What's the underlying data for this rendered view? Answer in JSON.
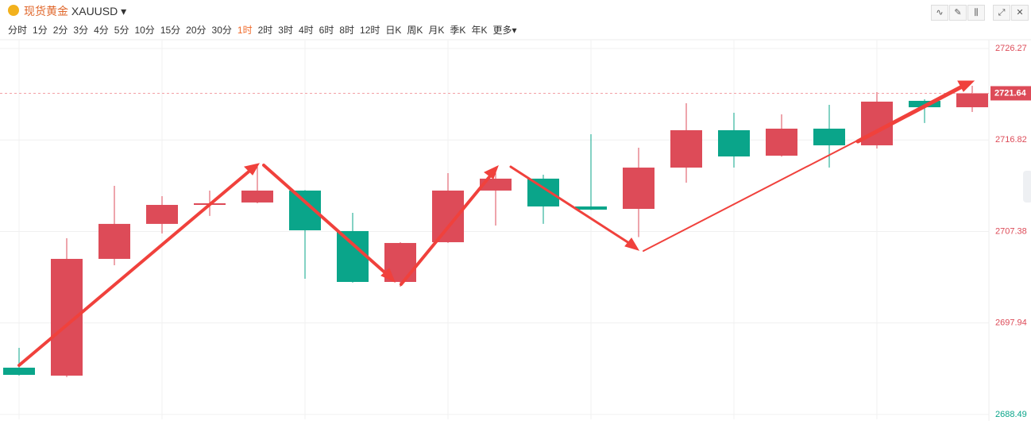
{
  "header": {
    "title": "现货黄金",
    "symbol": "XAUUSD",
    "intervals": [
      "分时",
      "1分",
      "2分",
      "3分",
      "4分",
      "5分",
      "10分",
      "15分",
      "20分",
      "30分",
      "1时",
      "2时",
      "3时",
      "4时",
      "6时",
      "8时",
      "12时",
      "日K",
      "周K",
      "月K",
      "季K",
      "年K",
      "更多"
    ]
  },
  "chart_data": {
    "type": "candlestick",
    "open": [
      2693.32,
      2692.5,
      2704.55,
      2708.16,
      2710.12,
      2710.37,
      2711.6,
      2707.42,
      2702.17,
      2706.27,
      2711.6,
      2712.83,
      2709.96,
      2709.71,
      2713.97,
      2717.83,
      2715.2,
      2717.99,
      2716.27,
      2720.86,
      2720.2
    ],
    "high": [
      2695.37,
      2706.68,
      2712.09,
      2711.02,
      2711.6,
      2714.22,
      2711.65,
      2709.3,
      2706.27,
      2713.4,
      2713.89,
      2713.24,
      2717.42,
      2716.02,
      2720.61,
      2719.63,
      2719.47,
      2720.45,
      2721.76,
      2721.02,
      2722.42
    ],
    "low": [
      2692.5,
      2692.35,
      2703.89,
      2707.17,
      2708.98,
      2710.29,
      2702.5,
      2702.1,
      2701.68,
      2706.2,
      2707.99,
      2708.16,
      2709.6,
      2706.8,
      2712.42,
      2713.97,
      2715.1,
      2713.97,
      2715.94,
      2718.57,
      2719.71
    ],
    "close": [
      2692.58,
      2704.55,
      2708.16,
      2710.12,
      2710.29,
      2711.6,
      2707.5,
      2702.17,
      2706.19,
      2711.6,
      2712.83,
      2709.96,
      2709.63,
      2713.97,
      2717.83,
      2715.12,
      2717.99,
      2716.27,
      2720.78,
      2720.2,
      2721.64
    ],
    "up_color": "#dd4b58",
    "down_color": "#0aa58a",
    "ylim": [
      2687.99,
      2727.17
    ],
    "yticks": [
      2688.49,
      2697.94,
      2707.38,
      2716.82,
      2726.27
    ],
    "grid": true
  }
}
